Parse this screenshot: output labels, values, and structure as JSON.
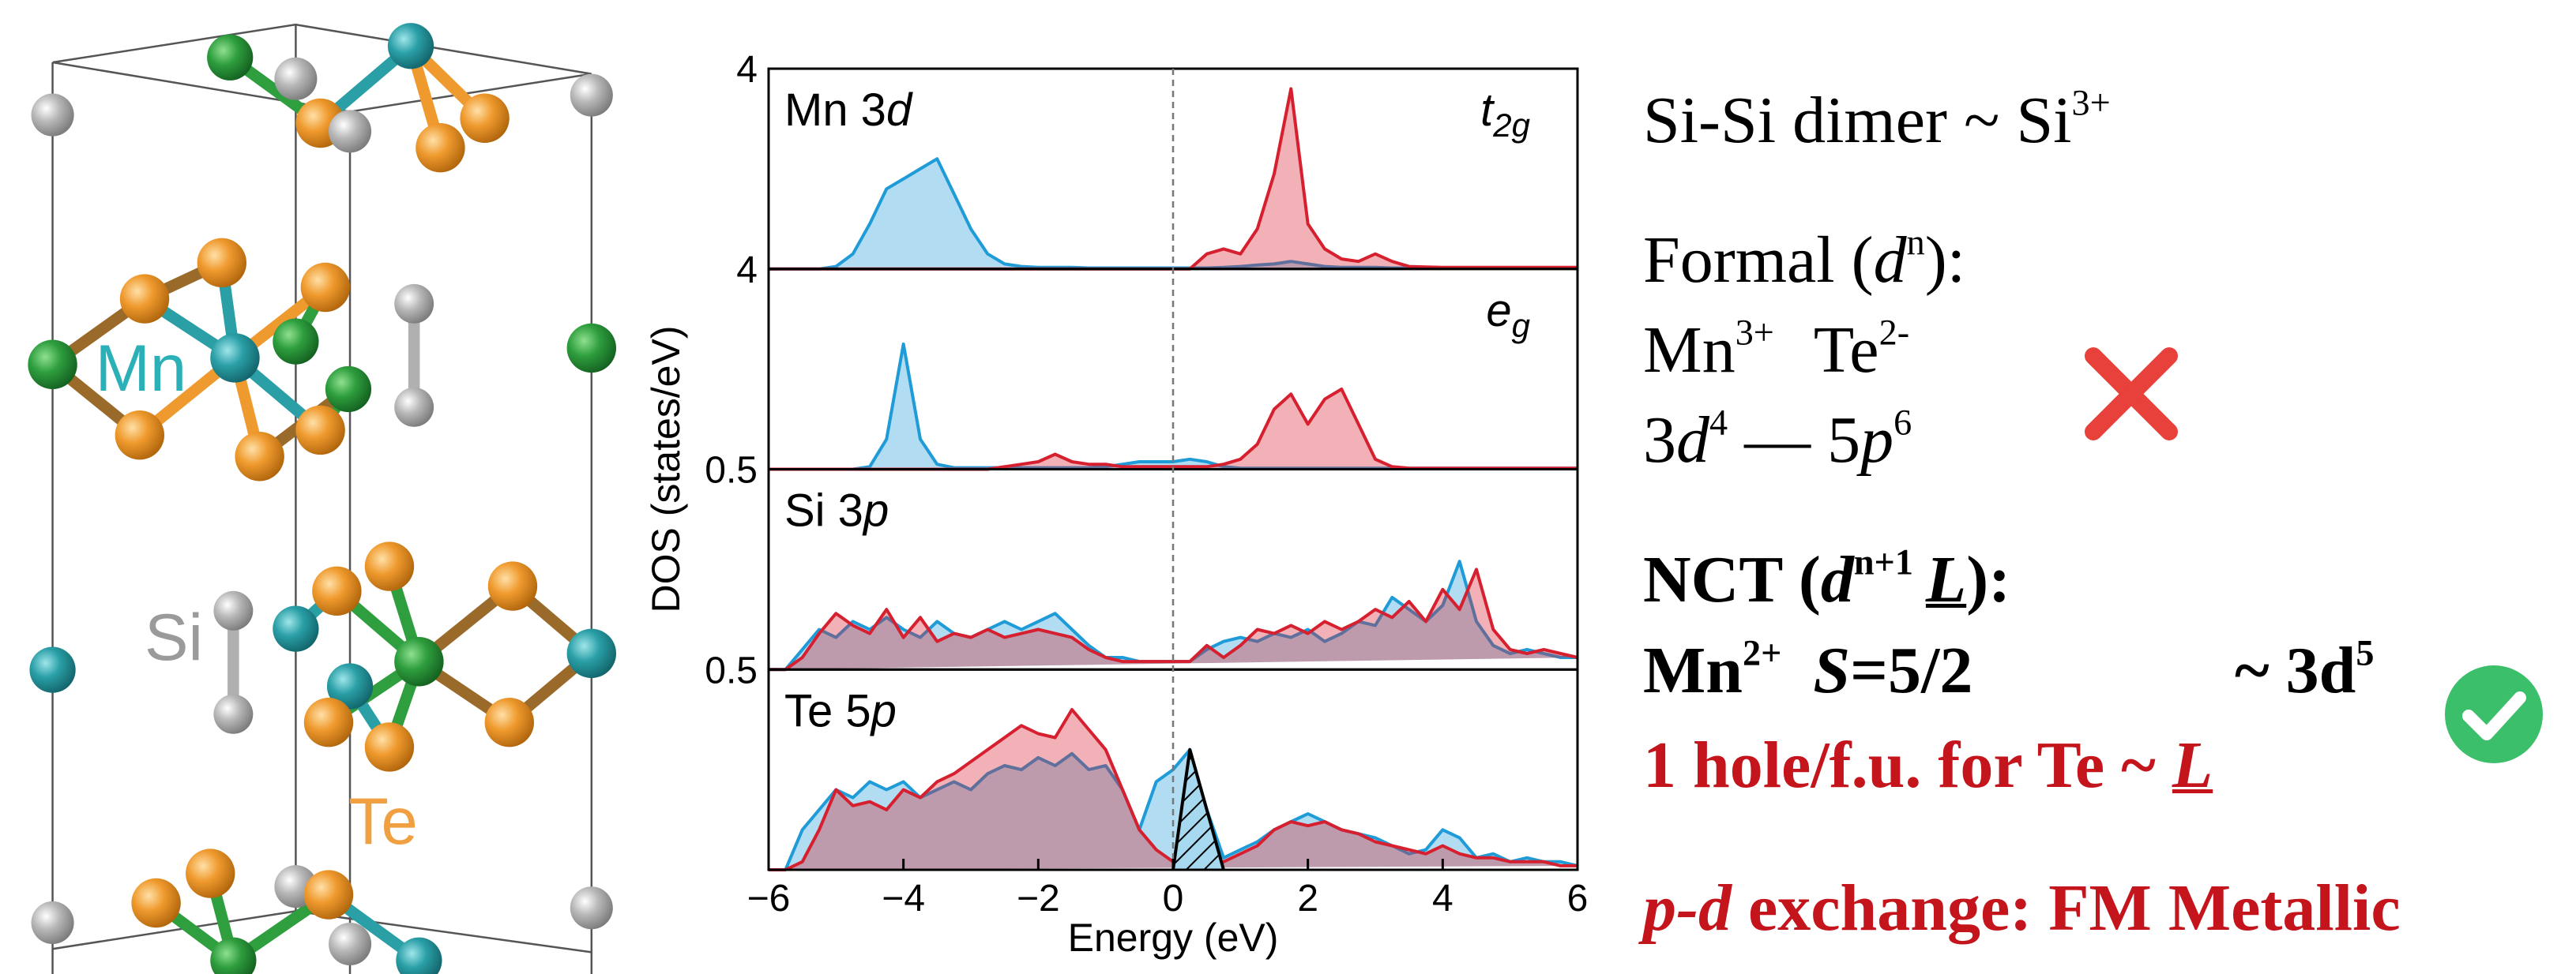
{
  "chart_data": {
    "type": "area",
    "xlabel": "Energy (eV)",
    "ylabel": "DOS (states/eV)",
    "xlim": [
      -6,
      6
    ],
    "xticks": [
      {
        "value": -6,
        "label": "−6"
      },
      {
        "value": -4,
        "label": "−4"
      },
      {
        "value": -2,
        "label": "−2"
      },
      0,
      2,
      4,
      6
    ],
    "reference_line_x": 0,
    "x": [
      -6,
      -5.75,
      -5.5,
      -5.25,
      -5,
      -4.75,
      -4.5,
      -4.25,
      -4,
      -3.75,
      -3.5,
      -3.25,
      -3,
      -2.75,
      -2.5,
      -2.25,
      -2,
      -1.75,
      -1.5,
      -1.25,
      -1,
      -0.75,
      -0.5,
      -0.25,
      0,
      0.25,
      0.5,
      0.75,
      1,
      1.25,
      1.5,
      1.75,
      2,
      2.25,
      2.5,
      2.75,
      3,
      3.25,
      3.5,
      3.75,
      4,
      4.25,
      4.5,
      4.75,
      5,
      5.25,
      5.5,
      5.75,
      6
    ],
    "panels": [
      {
        "label": [
          "Mn 3",
          "d"
        ],
        "annotation": [
          "t",
          "2g"
        ],
        "ylim": [
          0,
          4
        ],
        "yticks": [
          4
        ],
        "series": [
          {
            "color": "#1f9bd7",
            "values": [
              0,
              0,
              0,
              0,
              0.05,
              0.3,
              0.9,
              1.6,
              1.8,
              2.0,
              2.2,
              1.5,
              0.8,
              0.3,
              0.1,
              0.05,
              0.03,
              0.03,
              0.03,
              0.02,
              0.02,
              0.02,
              0.02,
              0.02,
              0.02,
              0.02,
              0.02,
              0.03,
              0.05,
              0.08,
              0.1,
              0.15,
              0.1,
              0.05,
              0.03,
              0.03,
              0.03,
              0.02,
              0.02,
              0.02,
              0.02,
              0.02,
              0.02,
              0.02,
              0.02,
              0.02,
              0.02,
              0.02,
              0.02
            ]
          },
          {
            "color": "#d6202f",
            "values": [
              0,
              0,
              0,
              0,
              0,
              0,
              0,
              0,
              0,
              0,
              0,
              0,
              0,
              0,
              0,
              0,
              0,
              0,
              0,
              0,
              0,
              0,
              0,
              0,
              0,
              0,
              0.3,
              0.4,
              0.3,
              0.8,
              1.9,
              3.6,
              0.9,
              0.4,
              0.2,
              0.15,
              0.3,
              0.15,
              0.05,
              0.04,
              0.03,
              0.03,
              0.03,
              0.03,
              0.03,
              0.03,
              0.03,
              0.03,
              0.03
            ]
          }
        ]
      },
      {
        "label": [],
        "annotation": [
          "e",
          "g"
        ],
        "ylim": [
          0,
          4
        ],
        "yticks": [
          4
        ],
        "series": [
          {
            "color": "#1f9bd7",
            "values": [
              0,
              0,
              0,
              0,
              0,
              0,
              0.05,
              0.6,
              2.5,
              0.6,
              0.1,
              0.03,
              0.03,
              0.03,
              0.03,
              0.03,
              0.03,
              0.03,
              0.03,
              0.03,
              0.05,
              0.1,
              0.15,
              0.15,
              0.15,
              0.2,
              0.15,
              0.05,
              0.02,
              0.02,
              0.02,
              0.02,
              0.02,
              0.02,
              0.02,
              0.02,
              0.02,
              0.02,
              0.02,
              0.02,
              0.02,
              0.02,
              0.02,
              0.02,
              0.02,
              0.02,
              0.02,
              0.02,
              0.02
            ]
          },
          {
            "color": "#d6202f",
            "values": [
              0,
              0,
              0,
              0,
              0,
              0,
              0,
              0,
              0,
              0,
              0,
              0,
              0,
              0,
              0.05,
              0.1,
              0.15,
              0.3,
              0.15,
              0.1,
              0.1,
              0.05,
              0.05,
              0.05,
              0.05,
              0.05,
              0.05,
              0.1,
              0.2,
              0.5,
              1.2,
              1.5,
              0.9,
              1.4,
              1.6,
              0.9,
              0.2,
              0.05,
              0.02,
              0.02,
              0.02,
              0.02,
              0.02,
              0.02,
              0.02,
              0.02,
              0.02,
              0.02,
              0.02
            ]
          }
        ]
      },
      {
        "label": [
          "Si 3",
          "p"
        ],
        "annotation": [],
        "ylim": [
          0,
          0.5
        ],
        "yticks": [
          0.5
        ],
        "series": [
          {
            "color": "#1f9bd7",
            "values": [
              0,
              0,
              0.05,
              0.1,
              0.08,
              0.12,
              0.1,
              0.13,
              0.1,
              0.08,
              0.12,
              0.09,
              0.08,
              0.1,
              0.12,
              0.1,
              0.12,
              0.14,
              0.1,
              0.06,
              0.03,
              0.03,
              0.02,
              0.02,
              0.02,
              0.02,
              0.05,
              0.07,
              0.08,
              0.07,
              0.09,
              0.08,
              0.1,
              0.07,
              0.09,
              0.12,
              0.11,
              0.18,
              0.15,
              0.12,
              0.16,
              0.27,
              0.12,
              0.06,
              0.04,
              0.05,
              0.04,
              0.03,
              0.03
            ]
          },
          {
            "color": "#d6202f",
            "values": [
              0,
              0,
              0.03,
              0.09,
              0.14,
              0.11,
              0.09,
              0.15,
              0.08,
              0.13,
              0.07,
              0.09,
              0.08,
              0.1,
              0.08,
              0.09,
              0.1,
              0.09,
              0.08,
              0.05,
              0.03,
              0.02,
              0.02,
              0.02,
              0.02,
              0.02,
              0.06,
              0.03,
              0.06,
              0.1,
              0.09,
              0.11,
              0.09,
              0.12,
              0.1,
              0.12,
              0.15,
              0.13,
              0.17,
              0.12,
              0.2,
              0.15,
              0.25,
              0.1,
              0.05,
              0.04,
              0.05,
              0.04,
              0.03
            ]
          }
        ]
      },
      {
        "label": [
          "Te 5",
          "p"
        ],
        "annotation": [],
        "ylim": [
          0,
          0.5
        ],
        "yticks": [
          0.5
        ],
        "series": [
          {
            "color": "#1f9bd7",
            "values": [
              0,
              0,
              0.1,
              0.15,
              0.2,
              0.18,
              0.22,
              0.2,
              0.22,
              0.18,
              0.2,
              0.22,
              0.2,
              0.24,
              0.26,
              0.25,
              0.28,
              0.26,
              0.29,
              0.25,
              0.26,
              0.2,
              0.1,
              0.22,
              0.25,
              0.3,
              0.15,
              0.03,
              0.05,
              0.07,
              0.1,
              0.12,
              0.14,
              0.12,
              0.1,
              0.09,
              0.08,
              0.06,
              0.04,
              0.05,
              0.1,
              0.08,
              0.03,
              0.04,
              0.02,
              0.03,
              0.02,
              0.02,
              0.01
            ]
          },
          {
            "color": "#d6202f",
            "values": [
              0,
              0,
              0.02,
              0.1,
              0.2,
              0.16,
              0.17,
              0.15,
              0.2,
              0.18,
              0.22,
              0.24,
              0.27,
              0.3,
              0.33,
              0.36,
              0.34,
              0.33,
              0.4,
              0.35,
              0.3,
              0.2,
              0.1,
              0.05,
              0.02,
              0.02,
              0.02,
              0.02,
              0.04,
              0.06,
              0.1,
              0.12,
              0.11,
              0.12,
              0.1,
              0.09,
              0.07,
              0.06,
              0.05,
              0.04,
              0.06,
              0.04,
              0.03,
              0.03,
              0.02,
              0.02,
              0.02,
              0.01,
              0.01
            ]
          },
          {
            "color": "#000000",
            "hatch": true,
            "values": [
              null,
              null,
              null,
              null,
              null,
              null,
              null,
              null,
              null,
              null,
              null,
              null,
              null,
              null,
              null,
              null,
              null,
              null,
              null,
              null,
              null,
              null,
              null,
              null,
              0,
              0.3,
              0.15,
              0,
              null,
              null,
              null,
              null,
              null,
              null,
              null,
              null,
              null,
              null,
              null,
              null,
              null,
              null,
              null,
              null,
              null,
              null,
              null,
              null,
              null
            ]
          }
        ]
      }
    ]
  },
  "structure": {
    "labels": [
      "Mn",
      "Si",
      "Te"
    ]
  },
  "notes": {
    "dimer": [
      "Si-Si dimer ~ Si",
      "3+"
    ],
    "formal": [
      "Formal (",
      "d",
      "n",
      "):"
    ],
    "ions": [
      "Mn",
      "3+",
      "Te",
      "2-"
    ],
    "configs": [
      "3",
      "d",
      "4",
      " — 5",
      "p",
      "6"
    ],
    "nct": [
      "NCT (",
      "d",
      "n+1",
      "L",
      "):"
    ],
    "mn": [
      "Mn",
      "2+",
      "S",
      "=5/2",
      "~ 3d",
      "5"
    ],
    "hole": [
      "1 hole/f.u. for Te ~ ",
      "L"
    ],
    "exchange": [
      "p-d",
      " exchange: FM Metallic"
    ]
  }
}
